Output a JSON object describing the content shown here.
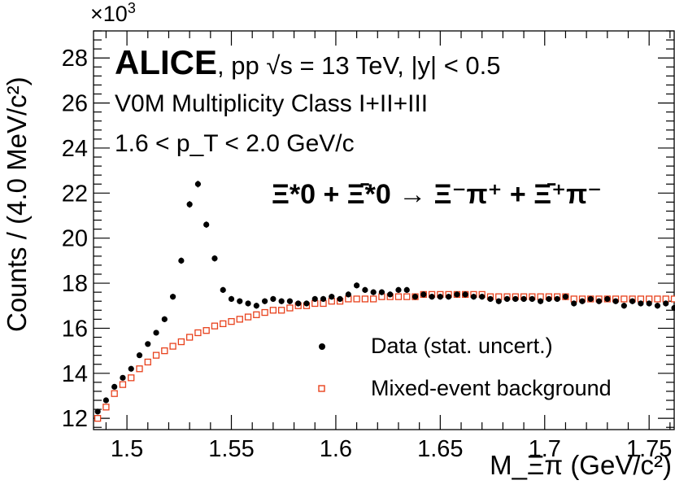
{
  "chart_data": {
    "type": "scatter",
    "x_range": [
      1.484,
      1.762
    ],
    "y_range": [
      11.5,
      29.2
    ],
    "y_multiplier": "×10",
    "y_multiplier_exp": "3",
    "x_ticks": [
      1.5,
      1.55,
      1.6,
      1.65,
      1.7,
      1.75
    ],
    "x_tick_labels": [
      "1.5",
      "1.55",
      "1.6",
      "1.65",
      "1.7",
      "1.75"
    ],
    "y_ticks": [
      12,
      14,
      16,
      18,
      20,
      22,
      24,
      26,
      28
    ],
    "y_tick_labels": [
      "12",
      "14",
      "16",
      "18",
      "20",
      "22",
      "24",
      "26",
      "28"
    ],
    "ylabel": "Counts / (4.0 MeV/c²)",
    "xlabel": "M_Ξπ (GeV/c²)",
    "annotations": {
      "experiment": "ALICE",
      "system": ", pp  √s = 13 TeV, |y| < 0.5",
      "multiplicity": "V0M Multiplicity Class I+II+III",
      "pt_range": "1.6 < p_T < 2.0 GeV/c",
      "decay": "Ξ*0 + Ξ̄*0 → Ξ⁻π⁺ + Ξ̄⁺π⁻"
    },
    "legend": {
      "position": "bottom-right",
      "entries": [
        "Data (stat. uncert.)",
        "Mixed-event background"
      ]
    },
    "colors": {
      "data": "#000000",
      "background": "#e8411c"
    },
    "x": [
      1.486,
      1.49,
      1.494,
      1.498,
      1.502,
      1.506,
      1.51,
      1.514,
      1.518,
      1.522,
      1.526,
      1.53,
      1.534,
      1.538,
      1.542,
      1.546,
      1.55,
      1.554,
      1.558,
      1.562,
      1.566,
      1.57,
      1.574,
      1.578,
      1.582,
      1.586,
      1.59,
      1.594,
      1.598,
      1.602,
      1.606,
      1.61,
      1.614,
      1.618,
      1.622,
      1.626,
      1.63,
      1.634,
      1.638,
      1.642,
      1.646,
      1.65,
      1.654,
      1.658,
      1.662,
      1.666,
      1.67,
      1.674,
      1.678,
      1.682,
      1.686,
      1.69,
      1.694,
      1.698,
      1.702,
      1.706,
      1.71,
      1.714,
      1.718,
      1.722,
      1.726,
      1.73,
      1.734,
      1.738,
      1.742,
      1.746,
      1.75,
      1.754,
      1.758,
      1.762
    ],
    "series": [
      {
        "name": "Data (stat. uncert.)",
        "y": [
          12.3,
          12.8,
          13.4,
          13.8,
          14.2,
          14.8,
          15.3,
          15.8,
          16.4,
          17.4,
          19.0,
          21.5,
          22.4,
          20.6,
          19.1,
          17.7,
          17.3,
          17.2,
          17.1,
          17.0,
          17.2,
          17.3,
          17.2,
          17.2,
          17.1,
          17.1,
          17.3,
          17.3,
          17.4,
          17.3,
          17.5,
          17.9,
          17.7,
          17.6,
          17.6,
          17.5,
          17.7,
          17.7,
          17.4,
          17.5,
          17.4,
          17.4,
          17.4,
          17.5,
          17.5,
          17.4,
          17.4,
          17.3,
          17.2,
          17.3,
          17.3,
          17.3,
          17.3,
          17.2,
          17.3,
          17.3,
          17.4,
          17.1,
          17.2,
          17.3,
          17.2,
          17.3,
          17.2,
          17.0,
          17.2,
          17.1,
          17.1,
          17.0,
          17.1,
          16.9
        ],
        "errors": [
          0.12,
          0.12,
          0.12,
          0.12,
          0.12,
          0.12,
          0.12,
          0.12,
          0.13,
          0.13,
          0.14,
          0.15,
          0.15,
          0.14,
          0.14,
          0.13,
          0.13,
          0.13,
          0.13,
          0.13,
          0.13,
          0.13,
          0.13,
          0.13,
          0.13,
          0.13,
          0.13,
          0.13,
          0.13,
          0.13,
          0.13,
          0.13,
          0.13,
          0.13,
          0.13,
          0.13,
          0.13,
          0.13,
          0.13,
          0.13,
          0.13,
          0.13,
          0.13,
          0.13,
          0.13,
          0.13,
          0.13,
          0.13,
          0.13,
          0.13,
          0.13,
          0.13,
          0.13,
          0.13,
          0.13,
          0.13,
          0.13,
          0.13,
          0.13,
          0.13,
          0.13,
          0.13,
          0.13,
          0.13,
          0.13,
          0.13,
          0.13,
          0.13,
          0.13,
          0.13
        ]
      },
      {
        "name": "Mixed-event background",
        "y": [
          12.0,
          12.5,
          13.1,
          13.5,
          13.8,
          14.2,
          14.5,
          14.8,
          15.0,
          15.2,
          15.4,
          15.6,
          15.8,
          15.9,
          16.1,
          16.2,
          16.3,
          16.4,
          16.5,
          16.6,
          16.7,
          16.8,
          16.8,
          16.9,
          17.0,
          17.0,
          17.1,
          17.1,
          17.2,
          17.2,
          17.3,
          17.3,
          17.3,
          17.3,
          17.4,
          17.4,
          17.4,
          17.4,
          17.4,
          17.5,
          17.5,
          17.5,
          17.5,
          17.5,
          17.5,
          17.5,
          17.5,
          17.4,
          17.4,
          17.4,
          17.4,
          17.4,
          17.4,
          17.4,
          17.4,
          17.4,
          17.4,
          17.3,
          17.3,
          17.3,
          17.3,
          17.3,
          17.3,
          17.3,
          17.3,
          17.3,
          17.3,
          17.3,
          17.3,
          17.3
        ]
      }
    ]
  }
}
